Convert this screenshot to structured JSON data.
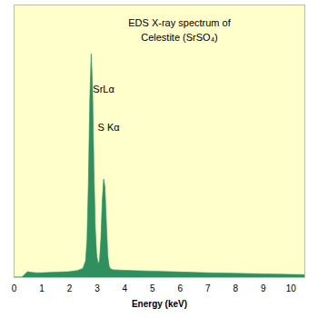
{
  "chart_data": {
    "type": "area",
    "title": "EDS X-ray spectrum of\nCelestite (SrSO₄)",
    "x_label": "Energy (keV)",
    "x": [
      0,
      0.3,
      0.4,
      0.5,
      0.6,
      0.8,
      1.0,
      1.5,
      2.0,
      2.3,
      2.5,
      2.6,
      2.65,
      2.7,
      2.75,
      2.8,
      2.85,
      2.9,
      2.95,
      3.0,
      3.05,
      3.1,
      3.15,
      3.2,
      3.25,
      3.3,
      3.35,
      3.4,
      3.45,
      3.5,
      3.6,
      4,
      5,
      6,
      7,
      8,
      9,
      10,
      10.5
    ],
    "values": [
      0,
      0,
      1,
      2,
      1.8,
      1.6,
      1.6,
      1.8,
      2,
      2.4,
      3.2,
      6,
      14,
      35,
      65,
      82,
      70,
      40,
      18,
      8,
      5,
      6,
      14,
      28,
      36,
      33,
      20,
      8,
      4,
      3,
      2.7,
      2.5,
      2.2,
      1.9,
      1.6,
      1.4,
      1.2,
      1.0,
      0.9
    ],
    "color": "#2f8f5f",
    "xlim": [
      0,
      10.5
    ],
    "xticks": [
      0,
      1,
      2,
      3,
      4,
      5,
      6,
      7,
      8,
      9,
      10
    ],
    "ylim": [
      0,
      100
    ],
    "tick_labels": "x",
    "annotations": [
      {
        "text": "SrLα",
        "x": 2.85,
        "y": 69
      },
      {
        "text": "S Kα",
        "x": 3.02,
        "y": 55
      }
    ]
  }
}
